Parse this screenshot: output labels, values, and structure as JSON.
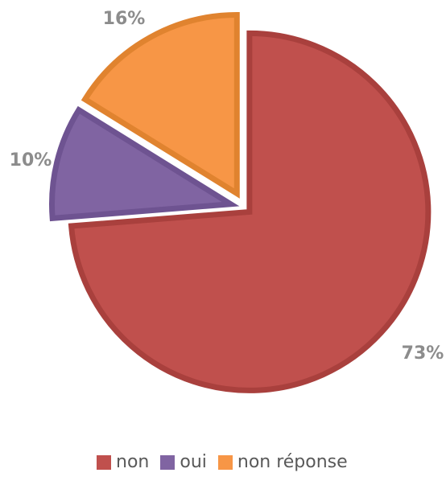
{
  "chart_data": {
    "type": "pie",
    "title": "",
    "categories": [
      "non",
      "oui",
      "non réponse"
    ],
    "values": [
      73,
      10,
      16
    ],
    "data_labels": [
      "73%",
      "10%",
      "16%"
    ],
    "colors": [
      "#c0504d",
      "#8064a2",
      "#f79646"
    ],
    "edge_colors": [
      "#a9403d",
      "#6e5391",
      "#e0832f"
    ],
    "start_angle_deg": 0,
    "direction": "clockwise",
    "exploded": true,
    "legend": "bottom",
    "label_color": "#8c8c8c"
  }
}
